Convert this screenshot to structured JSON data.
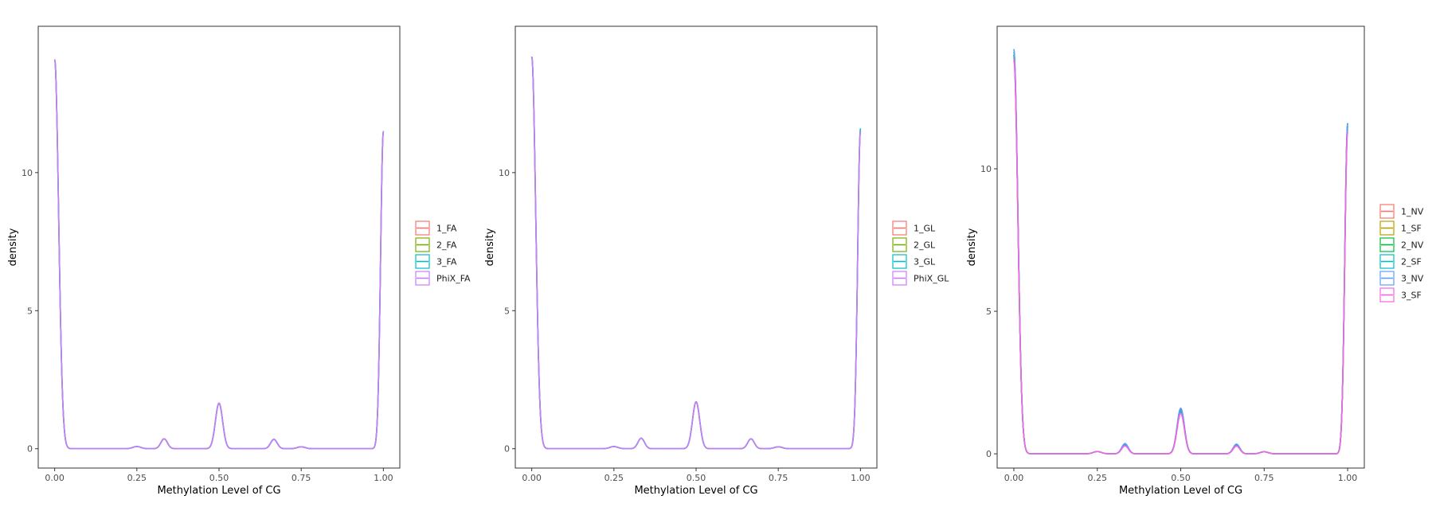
{
  "chart_data": [
    {
      "type": "line",
      "xlabel": "Methylation Level of CG",
      "ylabel": "density",
      "xlim": [
        -0.05,
        1.05
      ],
      "ylim": [
        -0.7,
        15.3
      ],
      "xticks": [
        0.0,
        0.25,
        0.5,
        0.75,
        1.0
      ],
      "xtick_labels": [
        "0.00",
        "0.25",
        "0.50",
        "0.75",
        "1.00"
      ],
      "yticks": [
        0,
        5,
        10
      ],
      "ytick_labels": [
        "0",
        "5",
        "10"
      ],
      "grid": false,
      "legend": "right",
      "peak_x": [
        0.0,
        0.25,
        0.333,
        0.5,
        0.667,
        0.75,
        1.0
      ],
      "series": [
        {
          "name": "1_FA",
          "color": "#F8766D",
          "peaks": [
            14.1,
            0.08,
            0.36,
            1.65,
            0.34,
            0.07,
            11.5
          ]
        },
        {
          "name": "2_FA",
          "color": "#7CAE00",
          "peaks": [
            14.1,
            0.08,
            0.36,
            1.65,
            0.34,
            0.07,
            11.5
          ]
        },
        {
          "name": "3_FA",
          "color": "#00BFC4",
          "peaks": [
            14.1,
            0.08,
            0.36,
            1.65,
            0.34,
            0.07,
            11.5
          ]
        },
        {
          "name": "PhiX_FA",
          "color": "#C77CFF",
          "peaks": [
            14.1,
            0.08,
            0.36,
            1.65,
            0.34,
            0.07,
            11.5
          ]
        }
      ]
    },
    {
      "type": "line",
      "xlabel": "Methylation Level of CG",
      "ylabel": "density",
      "xlim": [
        -0.05,
        1.05
      ],
      "ylim": [
        -0.7,
        15.3
      ],
      "xticks": [
        0.0,
        0.25,
        0.5,
        0.75,
        1.0
      ],
      "xtick_labels": [
        "0.00",
        "0.25",
        "0.50",
        "0.75",
        "1.00"
      ],
      "yticks": [
        0,
        5,
        10
      ],
      "ytick_labels": [
        "0",
        "5",
        "10"
      ],
      "grid": false,
      "legend": "right",
      "peak_x": [
        0.0,
        0.25,
        0.333,
        0.5,
        0.667,
        0.75,
        1.0
      ],
      "series": [
        {
          "name": "1_GL",
          "color": "#F8766D",
          "peaks": [
            14.2,
            0.08,
            0.38,
            1.7,
            0.36,
            0.07,
            11.5
          ]
        },
        {
          "name": "2_GL",
          "color": "#7CAE00",
          "peaks": [
            14.2,
            0.08,
            0.38,
            1.7,
            0.36,
            0.07,
            11.5
          ]
        },
        {
          "name": "3_GL",
          "color": "#00BFC4",
          "peaks": [
            14.2,
            0.08,
            0.38,
            1.7,
            0.36,
            0.07,
            11.6
          ]
        },
        {
          "name": "PhiX_GL",
          "color": "#C77CFF",
          "peaks": [
            14.2,
            0.08,
            0.38,
            1.7,
            0.36,
            0.07,
            11.5
          ]
        }
      ]
    },
    {
      "type": "line",
      "xlabel": "Methylation Level of CG",
      "ylabel": "density",
      "xlim": [
        -0.05,
        1.05
      ],
      "ylim": [
        -0.5,
        15.0
      ],
      "xticks": [
        0.0,
        0.25,
        0.5,
        0.75,
        1.0
      ],
      "xtick_labels": [
        "0.00",
        "0.25",
        "0.50",
        "0.75",
        "1.00"
      ],
      "yticks": [
        0,
        5,
        10
      ],
      "ytick_labels": [
        "0",
        "5",
        "10"
      ],
      "grid": false,
      "legend": "right",
      "peak_x": [
        0.0,
        0.25,
        0.333,
        0.5,
        0.667,
        0.75,
        1.0
      ],
      "series": [
        {
          "name": "1_NV",
          "color": "#F8766D",
          "peaks": [
            13.9,
            0.08,
            0.34,
            1.55,
            0.32,
            0.07,
            11.5
          ]
        },
        {
          "name": "1_SF",
          "color": "#B79F00",
          "peaks": [
            14.0,
            0.08,
            0.3,
            1.45,
            0.28,
            0.07,
            11.4
          ]
        },
        {
          "name": "2_NV",
          "color": "#00BA38",
          "peaks": [
            14.0,
            0.08,
            0.34,
            1.58,
            0.33,
            0.07,
            11.6
          ]
        },
        {
          "name": "2_SF",
          "color": "#00BFC4",
          "peaks": [
            14.1,
            0.08,
            0.32,
            1.5,
            0.3,
            0.07,
            11.5
          ]
        },
        {
          "name": "3_NV",
          "color": "#619CFF",
          "peaks": [
            14.2,
            0.08,
            0.36,
            1.6,
            0.34,
            0.07,
            11.6
          ]
        },
        {
          "name": "3_SF",
          "color": "#F564E3",
          "peaks": [
            13.8,
            0.08,
            0.28,
            1.42,
            0.27,
            0.07,
            11.3
          ]
        }
      ]
    }
  ]
}
